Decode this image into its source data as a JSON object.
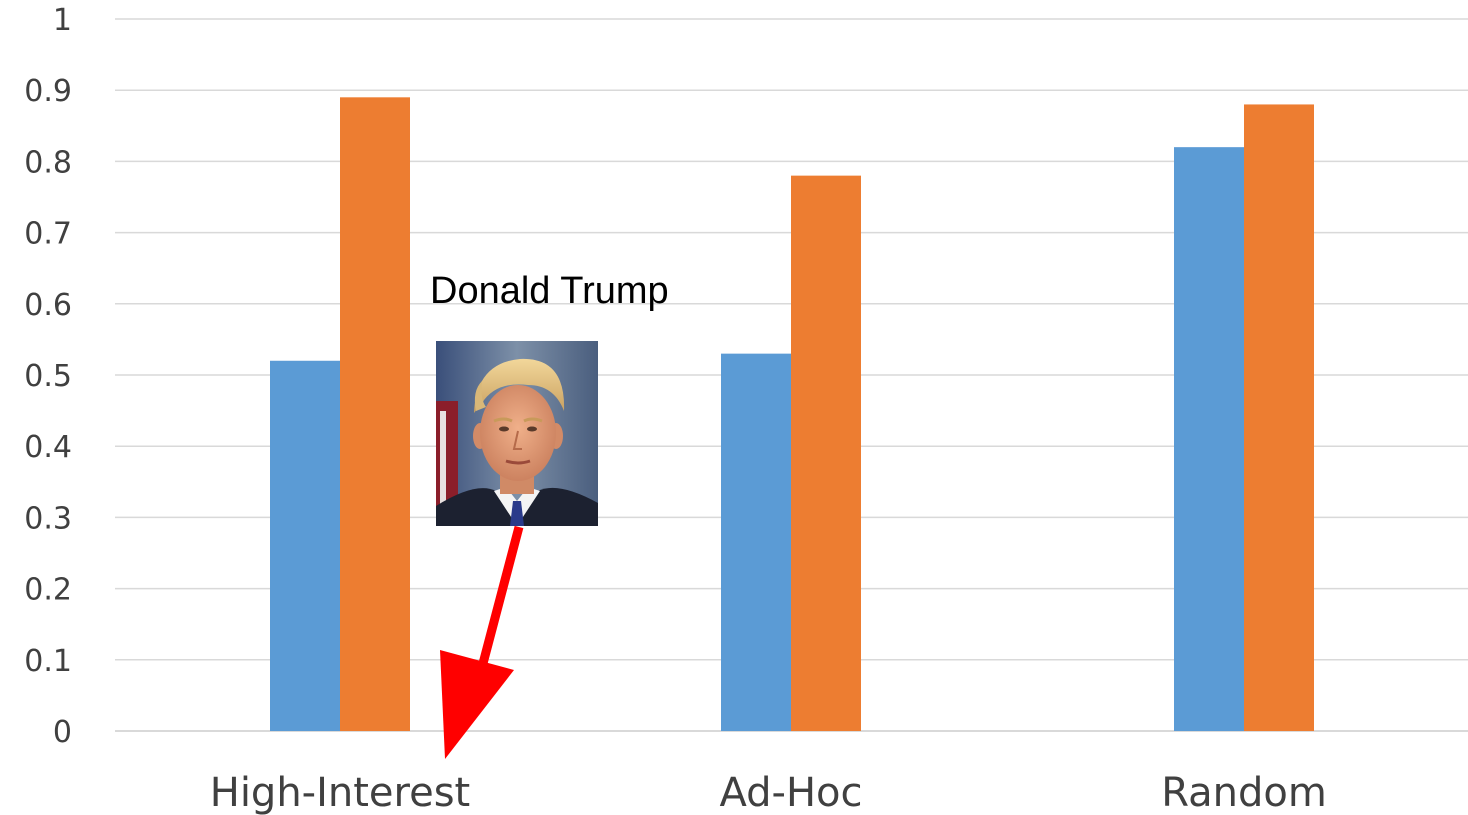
{
  "chart_data": {
    "type": "bar",
    "categories": [
      "High-Interest",
      "Ad-Hoc",
      "Random"
    ],
    "series": [
      {
        "values": [
          0.52,
          0.53,
          0.82
        ],
        "color": "#5B9BD5"
      },
      {
        "values": [
          0.89,
          0.78,
          0.88
        ],
        "color": "#ED7D31"
      }
    ],
    "ylim": [
      0,
      1
    ],
    "yticks": [
      "0",
      "0.1",
      "0.2",
      "0.3",
      "0.4",
      "0.5",
      "0.6",
      "0.7",
      "0.8",
      "0.9",
      "1"
    ],
    "grid": true,
    "gridline_color": "#D9D9D9",
    "annotations": [
      {
        "text": "Donald Trump",
        "points_to_category": "High-Interest",
        "arrow_color": "#FF0000",
        "icon": "portrait-photo-icon"
      }
    ]
  }
}
